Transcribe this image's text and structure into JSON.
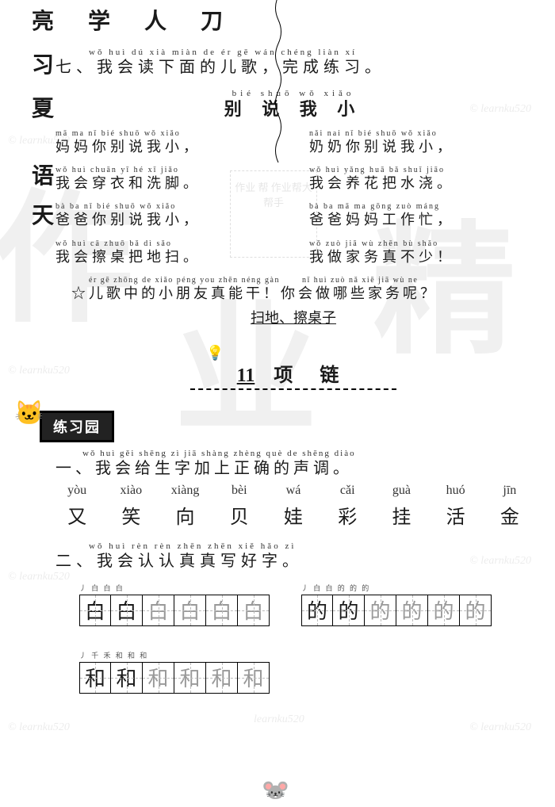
{
  "decor": {
    "top_chars": "亮 学 人 刀",
    "side": [
      "习",
      "夏",
      "语",
      "天"
    ],
    "watermark_chars": [
      "作",
      "业",
      "精"
    ],
    "ghost_box": "作业\n帮\n作业帮大帮手"
  },
  "section7": {
    "pinyin": "wǒ huì dú xià miàn de ér gē   wán chéng liàn xí",
    "hanzi": "七、我会读下面的儿歌，完成练习。",
    "title_pinyin": "bié  shuō  wǒ  xiǎo",
    "title_hanzi": "别 说 我 小",
    "lines": [
      {
        "lp": "mā ma nǐ bié shuō wǒ xiǎo",
        "lh": "妈妈你别说我小，",
        "rp": "nǎi nai nǐ bié shuō wǒ xiǎo",
        "rh": "奶奶你别说我小，"
      },
      {
        "lp": "wǒ huì chuān yī hé xǐ jiǎo",
        "lh": "我会穿衣和洗脚。",
        "rp": "wǒ huì yǎng huā bǎ shuǐ jiāo",
        "rh": "我会养花把水浇。"
      },
      {
        "lp": "bà ba nǐ bié shuō wǒ xiǎo",
        "lh": "爸爸你别说我小，",
        "rp": "bà ba mā ma gōng zuò máng",
        "rh": "爸爸妈妈工作忙，"
      },
      {
        "lp": "wǒ huì cā zhuō bǎ dì sǎo",
        "lh": "我会擦桌把地扫。",
        "rp": "wǒ zuò jiā wù zhēn bù shǎo",
        "rh": "我做家务真不少！"
      }
    ],
    "star_pinyin_left": "ér gē zhōng de xiǎo péng you zhēn néng gàn",
    "star_pinyin_right": "nǐ huì zuò nǎ xiē jiā wù ne",
    "star_hanzi": "☆儿歌中的小朋友真能干！你会做哪些家务呢？",
    "answer": "扫地、擦桌子"
  },
  "lesson": {
    "number": "11",
    "name": "项  链",
    "badge": "练习园"
  },
  "ex1": {
    "pinyin": "wǒ huì gěi shēng zì jiā shàng zhèng què de shēng diào",
    "hanzi": "一、我会给生字加上正确的声调。",
    "row_pinyin": [
      "yòu",
      "xiào",
      "xiàng",
      "bèi",
      "wá",
      "cǎi",
      "guà",
      "huó",
      "jīn"
    ],
    "row_hanzi": [
      "又",
      "笑",
      "向",
      "贝",
      "娃",
      "彩",
      "挂",
      "活",
      "金"
    ]
  },
  "ex2": {
    "pinyin": "wǒ huì rèn rèn zhēn zhēn xiě hǎo zì",
    "hanzi": "二、我会认认真真写好字。",
    "blocks": [
      {
        "hint": "丿 白 白 白",
        "cells": [
          "白",
          "白",
          "白",
          "白",
          "白",
          "白"
        ]
      },
      {
        "hint": "丿 白 白 的 的 的",
        "cells": [
          "的",
          "的",
          "的",
          "的",
          "的",
          "的"
        ]
      },
      {
        "hint": "丿 千 禾 和 和 和",
        "cells": [
          "和",
          "和",
          "和",
          "和",
          "和",
          "和"
        ]
      }
    ]
  },
  "colors": {
    "text": "#1a1a1a",
    "light": "#999999",
    "grid_guide": "#bbbbbb",
    "background": "#ffffff"
  }
}
